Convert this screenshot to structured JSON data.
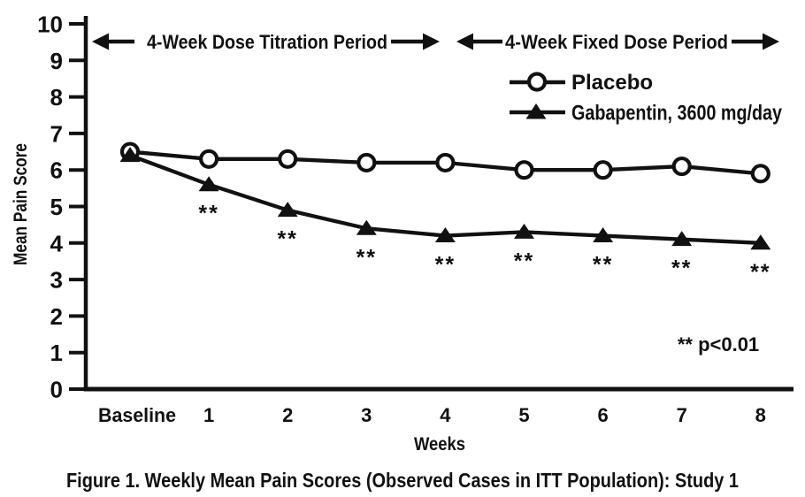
{
  "figure": {
    "caption": "Figure 1. Weekly Mean Pain Scores (Observed Cases in ITT Population): Study 1"
  },
  "chart_data": {
    "type": "line",
    "title": "Figure 1. Weekly Mean Pain Scores (Observed Cases in ITT Population): Study 1",
    "xlabel": "Weeks",
    "ylabel": "Mean Pain Score",
    "ylim": [
      0,
      10
    ],
    "ytick_interval": 1,
    "grid": false,
    "legend_position": "upper-right-inside",
    "categories": [
      "Baseline",
      "1",
      "2",
      "3",
      "4",
      "5",
      "6",
      "7",
      "8"
    ],
    "series": [
      {
        "name": "Placebo",
        "marker": "open-circle",
        "values": [
          6.5,
          6.3,
          6.3,
          6.2,
          6.2,
          6.0,
          6.0,
          6.1,
          5.9
        ]
      },
      {
        "name": "Gabapentin, 3600 mg/day",
        "marker": "filled-triangle",
        "values": [
          6.4,
          5.6,
          4.9,
          4.4,
          4.2,
          4.3,
          4.2,
          4.1,
          4.0
        ],
        "significance": [
          false,
          true,
          true,
          true,
          true,
          true,
          true,
          true,
          true
        ],
        "significance_symbol": "**"
      }
    ],
    "annotations": {
      "periods": [
        "4-Week Dose Titration Period",
        "4-Week Fixed Dose Period"
      ],
      "p_note": "** p<0.01"
    },
    "colors": {
      "foreground": "#111111",
      "background": "#ffffff"
    }
  }
}
